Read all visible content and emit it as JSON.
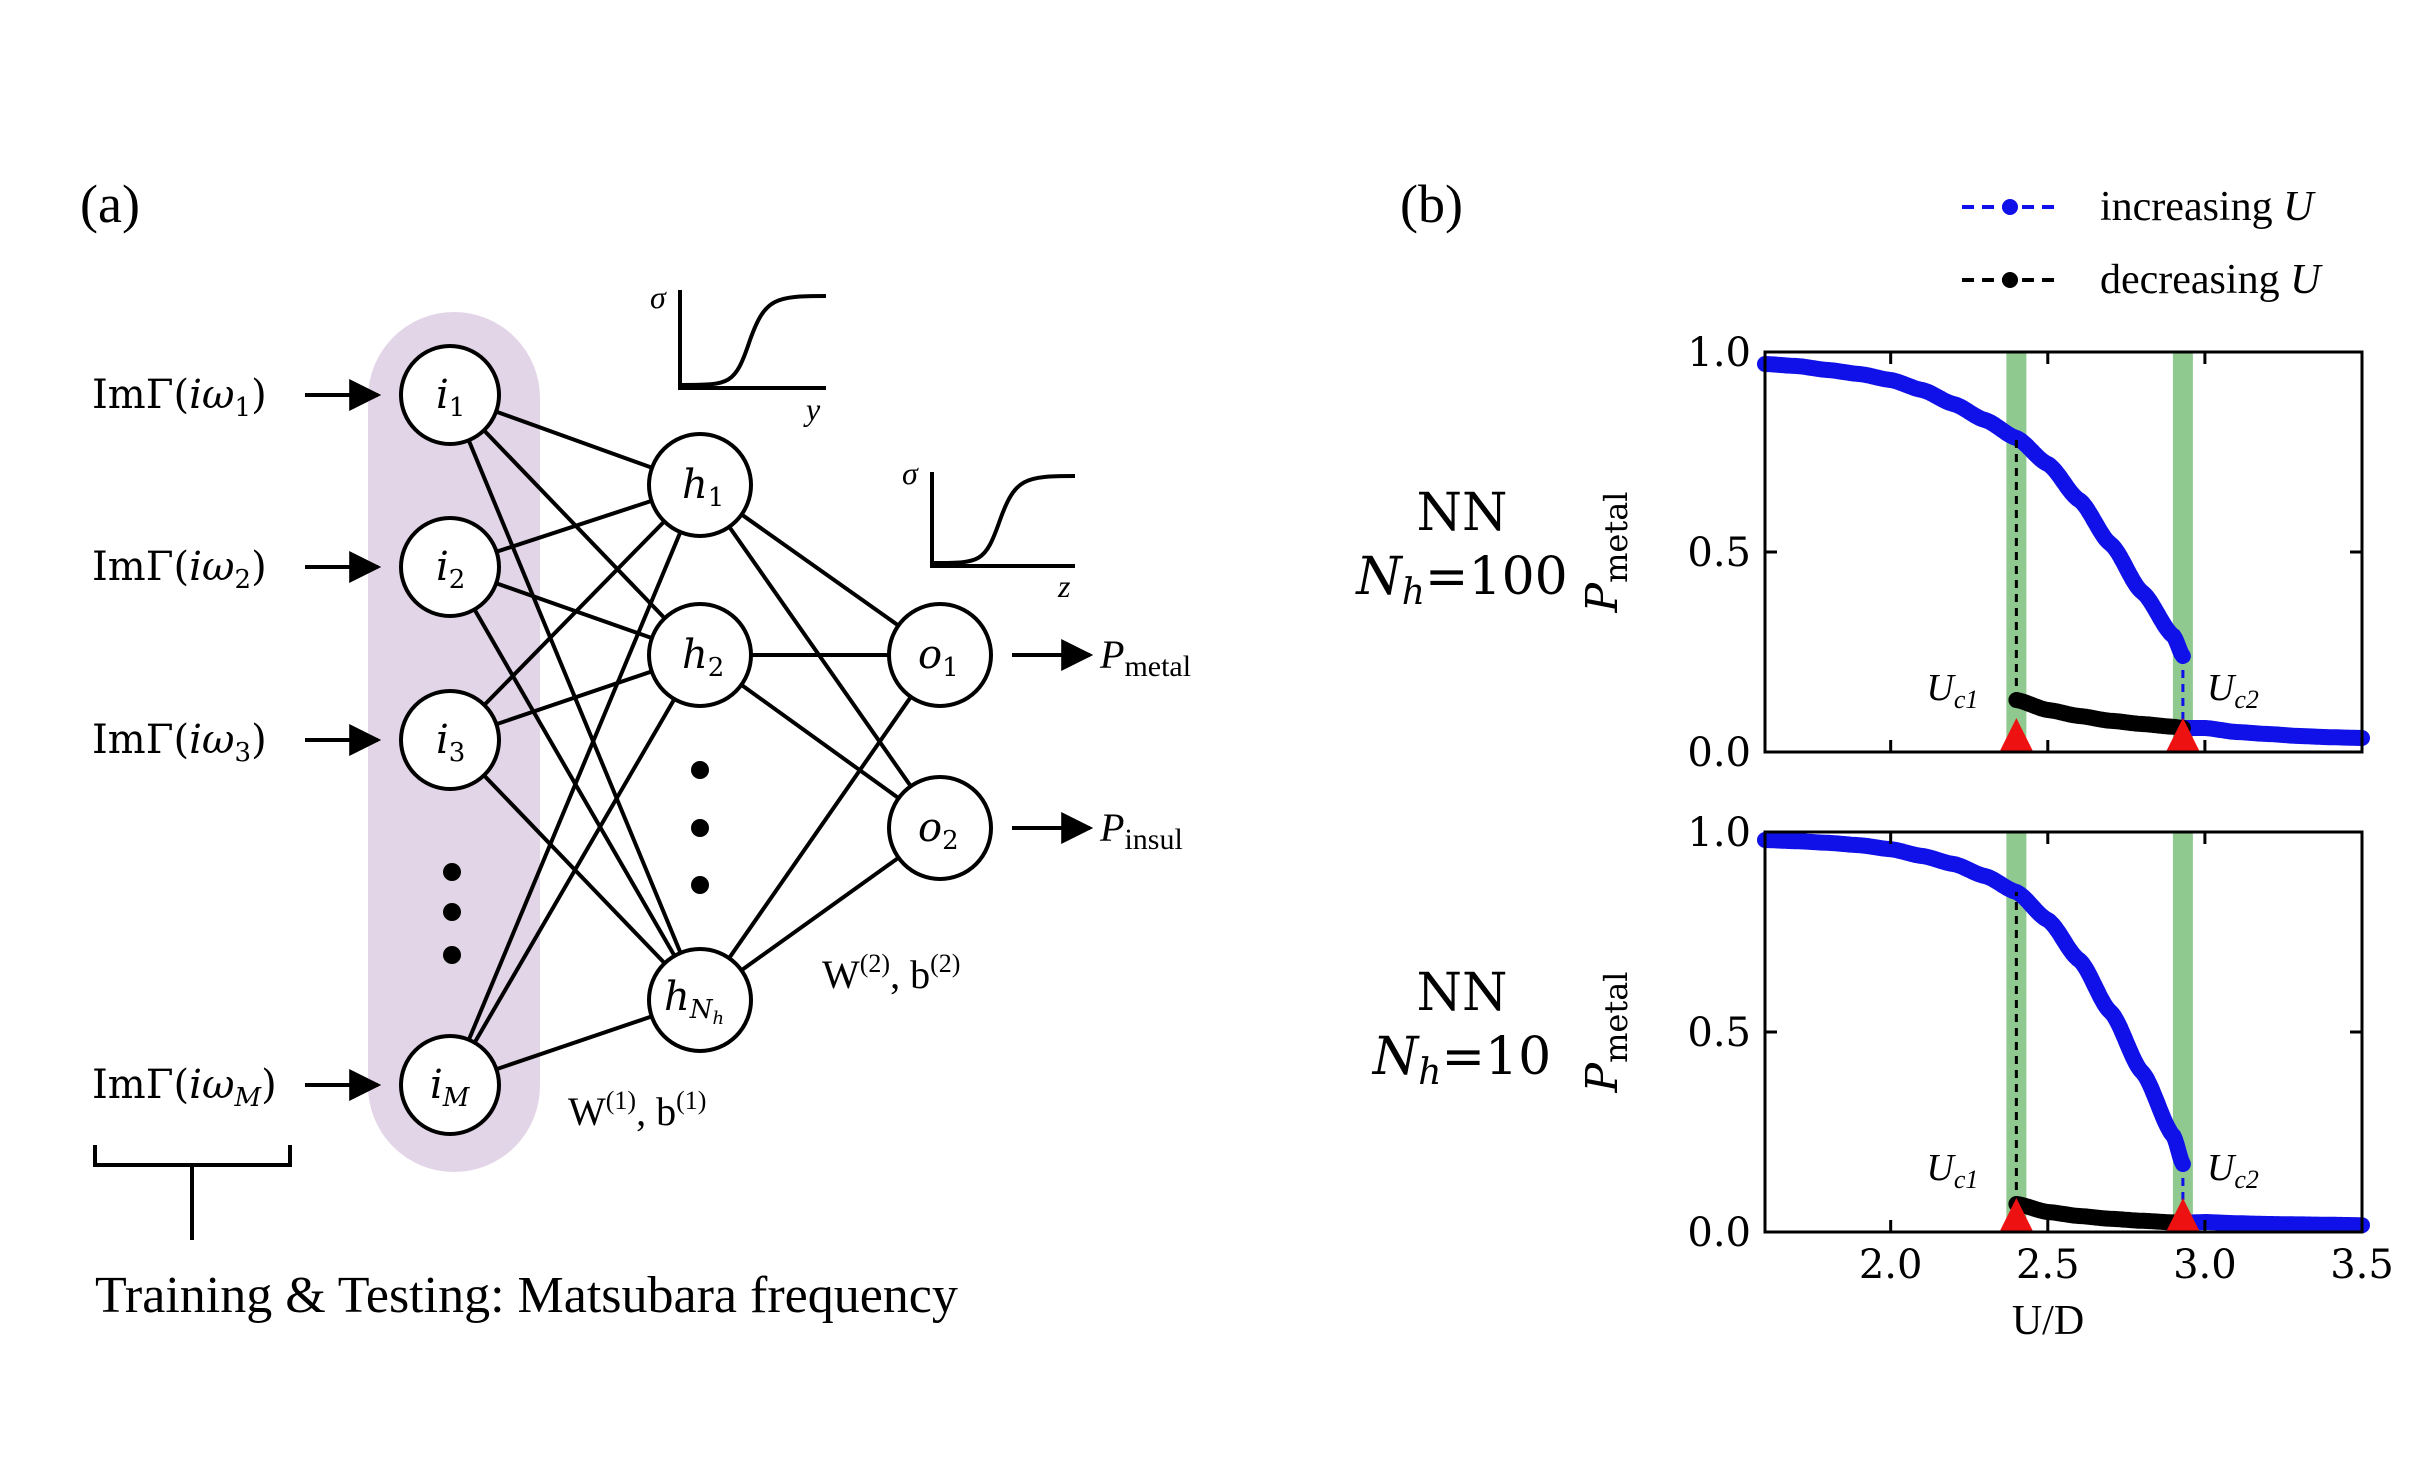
{
  "panel_a": {
    "label": "(a)",
    "inputs": [
      {
        "pre": "ImΓ(",
        "var": "iω",
        "sub": "1",
        "post": ")"
      },
      {
        "pre": "ImΓ(",
        "var": "iω",
        "sub": "2",
        "post": ")"
      },
      {
        "pre": "ImΓ(",
        "var": "iω",
        "sub": "3",
        "post": ")"
      },
      {
        "pre": "ImΓ(",
        "var": "iω",
        "sub": "M",
        "post": ")"
      }
    ],
    "input_nodes": [
      {
        "var": "i",
        "sub": "1"
      },
      {
        "var": "i",
        "sub": "2"
      },
      {
        "var": "i",
        "sub": "3"
      },
      {
        "var": "i",
        "sub": "M"
      }
    ],
    "hidden_nodes": [
      {
        "var": "h",
        "sub": "1"
      },
      {
        "var": "h",
        "sub": "2"
      },
      {
        "var": "h",
        "sub": "N",
        "subsub": "h"
      }
    ],
    "output_nodes": [
      {
        "var": "o",
        "sub": "1"
      },
      {
        "var": "o",
        "sub": "2"
      }
    ],
    "outputs": [
      {
        "var": "P",
        "sub": "metal"
      },
      {
        "var": "P",
        "sub": "insul"
      }
    ],
    "weights1": {
      "w": "W",
      "wsup": "(1)",
      "sep": ", ",
      "b": "b",
      "bsup": "(1)"
    },
    "weights2": {
      "w": "W",
      "wsup": "(2)",
      "sep": ", ",
      "b": "b",
      "bsup": "(2)"
    },
    "sigma1": {
      "sym": "σ",
      "axis": "y"
    },
    "sigma2": {
      "sym": "σ",
      "axis": "z"
    },
    "footer": "Training & Testing: Matsubara frequency",
    "colors": {
      "input_band": "#e3d5e8",
      "stroke": "#000000"
    }
  },
  "panel_b": {
    "label": "(b)",
    "legend": [
      {
        "text": "increasing ",
        "var": "U",
        "color": "#1010e8"
      },
      {
        "text": "decreasing ",
        "var": "U",
        "color": "#000000"
      }
    ],
    "row_labels": [
      {
        "line1": "NN",
        "var": "N",
        "sub": "h",
        "value": "=100"
      },
      {
        "line1": "NN",
        "var": "N",
        "sub": "h",
        "value": "=10"
      }
    ],
    "annotations": {
      "uc1": {
        "var": "U",
        "sub": "c1"
      },
      "uc2": {
        "var": "U",
        "sub": "c2"
      }
    },
    "colors": {
      "increasing": "#1010e8",
      "decreasing": "#000000",
      "band": "#8fc98f",
      "marker": "#ee1111"
    }
  },
  "chart_data": [
    {
      "type": "line",
      "title": "",
      "xlabel": "U/D",
      "ylabel": "P_metal",
      "ylabel_main": "P",
      "ylabel_sub": "metal",
      "xlim": [
        1.6,
        3.5
      ],
      "ylim": [
        0.0,
        1.0
      ],
      "xticks": [
        2.0,
        2.5,
        3.0,
        3.5
      ],
      "yticks": [
        0.0,
        0.5,
        1.0
      ],
      "xtick_labels": [
        "2.0",
        "2.5",
        "3.0",
        "3.5"
      ],
      "ytick_labels": [
        "0.0",
        "0.5",
        "1.0"
      ],
      "show_x_tick_labels": false,
      "vertical_bands": [
        2.4,
        2.93
      ],
      "markers": [
        2.4,
        2.93
      ],
      "series": [
        {
          "name": "increasing U",
          "x": [
            1.6,
            1.7,
            1.8,
            1.9,
            2.0,
            2.1,
            2.2,
            2.3,
            2.4,
            2.5,
            2.6,
            2.7,
            2.8,
            2.9,
            2.93,
            3.0,
            3.1,
            3.2,
            3.3,
            3.4,
            3.5
          ],
          "y": [
            0.97,
            0.965,
            0.955,
            0.945,
            0.93,
            0.905,
            0.87,
            0.83,
            0.785,
            0.72,
            0.63,
            0.52,
            0.4,
            0.29,
            0.24,
            0.06,
            0.05,
            0.045,
            0.04,
            0.037,
            0.035
          ],
          "jump_at": 2.93
        },
        {
          "name": "decreasing U",
          "x": [
            2.4,
            2.5,
            2.6,
            2.7,
            2.8,
            2.9,
            2.93
          ],
          "y": [
            0.13,
            0.105,
            0.09,
            0.078,
            0.07,
            0.063,
            0.06
          ],
          "drop_at": 2.4
        }
      ]
    },
    {
      "type": "line",
      "title": "",
      "xlabel": "U/D",
      "ylabel": "P_metal",
      "ylabel_main": "P",
      "ylabel_sub": "metal",
      "xlim": [
        1.6,
        3.5
      ],
      "ylim": [
        0.0,
        1.0
      ],
      "xticks": [
        2.0,
        2.5,
        3.0,
        3.5
      ],
      "yticks": [
        0.0,
        0.5,
        1.0
      ],
      "xtick_labels": [
        "2.0",
        "2.5",
        "3.0",
        "3.5"
      ],
      "ytick_labels": [
        "0.0",
        "0.5",
        "1.0"
      ],
      "show_x_tick_labels": true,
      "vertical_bands": [
        2.4,
        2.93
      ],
      "markers": [
        2.4,
        2.93
      ],
      "series": [
        {
          "name": "increasing U",
          "x": [
            1.6,
            1.7,
            1.8,
            1.9,
            2.0,
            2.1,
            2.2,
            2.3,
            2.4,
            2.5,
            2.6,
            2.7,
            2.8,
            2.9,
            2.93,
            3.0,
            3.1,
            3.2,
            3.3,
            3.4,
            3.5
          ],
          "y": [
            0.98,
            0.977,
            0.973,
            0.967,
            0.957,
            0.94,
            0.92,
            0.89,
            0.85,
            0.78,
            0.68,
            0.55,
            0.4,
            0.24,
            0.17,
            0.025,
            0.022,
            0.02,
            0.019,
            0.018,
            0.017
          ],
          "jump_at": 2.93
        },
        {
          "name": "decreasing U",
          "x": [
            2.4,
            2.5,
            2.6,
            2.7,
            2.8,
            2.9,
            2.93
          ],
          "y": [
            0.07,
            0.05,
            0.04,
            0.033,
            0.028,
            0.024,
            0.023
          ],
          "drop_at": 2.4
        }
      ]
    }
  ]
}
